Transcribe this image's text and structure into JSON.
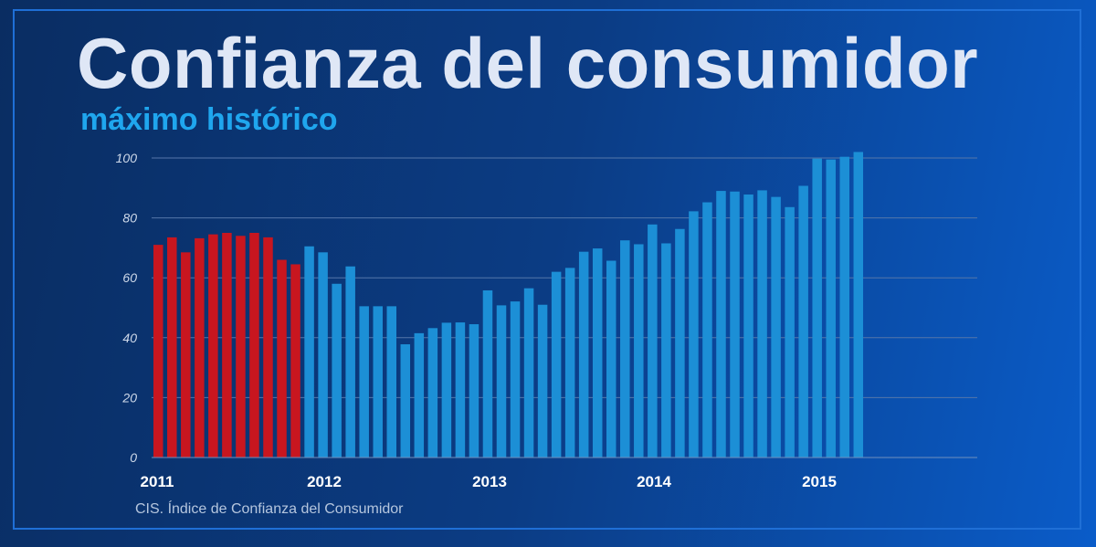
{
  "title": "Confianza del consumidor",
  "subtitle": "máximo histórico",
  "source": "CIS. Índice de Confianza del Consumidor",
  "colors": {
    "historic": "#c8161f",
    "current": "#1c8fd6",
    "title": "#dfe7f6",
    "subtitle": "#1fa6ee",
    "grid": "#5577aa"
  },
  "chart_data": {
    "type": "bar",
    "title": "Confianza del consumidor",
    "subtitle": "máximo histórico",
    "ylim": [
      0,
      100
    ],
    "yticks": [
      0,
      20,
      40,
      60,
      80,
      100
    ],
    "xticks": [
      "2011",
      "2012",
      "2013",
      "2014",
      "2015"
    ],
    "grid": true,
    "highlight_red_count": 11,
    "values": [
      71,
      73.5,
      68.5,
      73.2,
      74.5,
      75,
      74,
      75,
      73.5,
      66,
      64.5,
      70.5,
      68.5,
      58,
      63.8,
      50.5,
      50.5,
      50.5,
      37.8,
      41.5,
      43.2,
      45,
      45.1,
      44.5,
      55.8,
      50.8,
      52.1,
      56.5,
      51,
      62,
      63.3,
      68.7,
      69.8,
      65.7,
      72.5,
      71.2,
      77.8,
      71.5,
      76.3,
      82.2,
      85.2,
      89,
      88.8,
      87.8,
      89.2,
      87,
      83.6,
      90.7,
      99.8,
      99.5,
      100.4,
      102
    ]
  }
}
